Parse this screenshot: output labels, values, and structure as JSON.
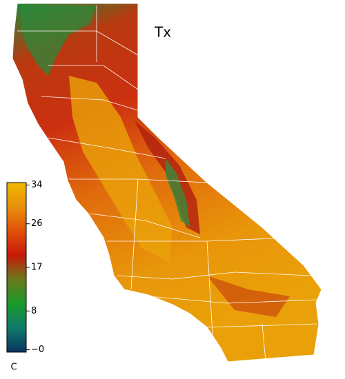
{
  "map": {
    "title": "Tx",
    "colorbar": {
      "label": "C",
      "lim": [
        -0.5,
        34.5
      ],
      "ticks": [
        34,
        26,
        17,
        8,
        {
          "value": 0,
          "label": "−0"
        }
      ],
      "colors": [
        "#0b3463",
        "#0f7a6a",
        "#1a9a2a",
        "#6a7a1a",
        "#c81a0a",
        "#e0500a",
        "#e8900a",
        "#f0b800"
      ]
    }
  }
}
